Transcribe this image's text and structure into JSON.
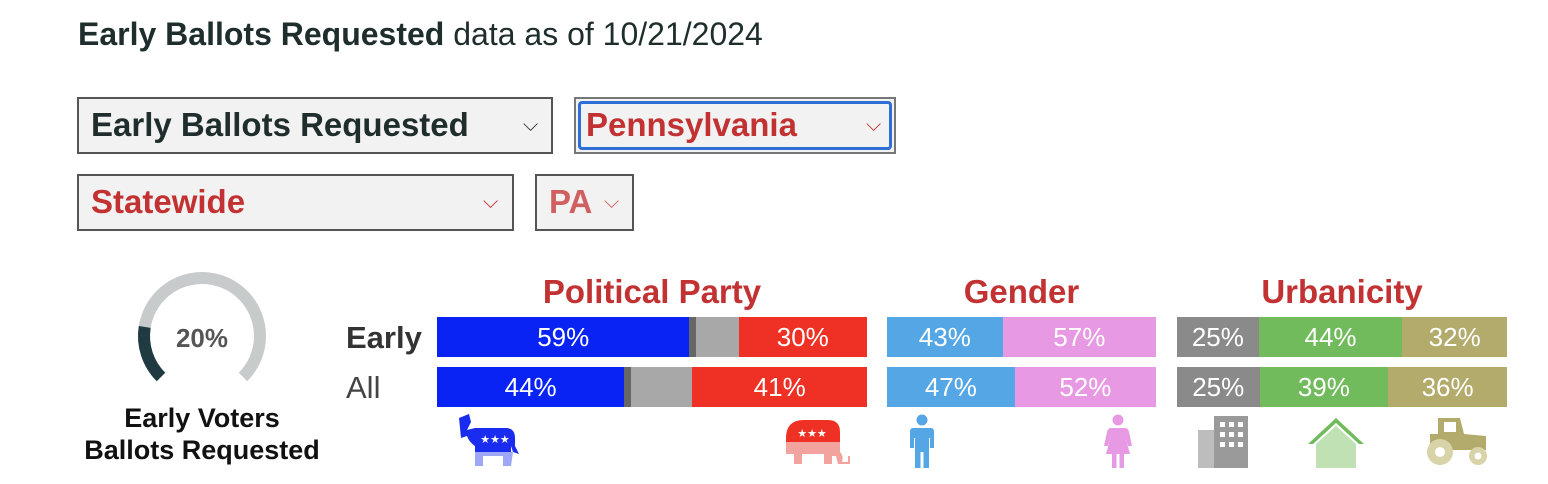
{
  "header": {
    "title_bold": "Early Ballots Requested",
    "title_rest": " data as of 10/21/2024"
  },
  "selects": {
    "measure": "Early Ballots Requested",
    "state": "Pennsylvania",
    "region": "Statewide",
    "state_code": "PA",
    "chevron": "⌵"
  },
  "gauge": {
    "value": 20,
    "label": "20%",
    "caption_line1": "Early Voters",
    "caption_line2": "Ballots Requested",
    "colors": {
      "track": "#c8cbcb",
      "fill": "#1f3a40"
    }
  },
  "rows": {
    "early": "Early",
    "all": "All"
  },
  "chart_data": [
    {
      "type": "bar",
      "title": "Political Party",
      "categories": [
        "Early",
        "All"
      ],
      "stacked": true,
      "series": [
        {
          "key": "dem",
          "color": "#0a23f5",
          "values": [
            59,
            44
          ],
          "labels": [
            "59%",
            "44%"
          ]
        },
        {
          "key": "lib",
          "color": "#666666",
          "values": [
            1.5,
            1.5
          ],
          "labels": [
            "",
            ""
          ]
        },
        {
          "key": "ind",
          "color": "#a8a8a8",
          "values": [
            10,
            14.5
          ],
          "labels": [
            "",
            ""
          ]
        },
        {
          "key": "rep",
          "color": "#ee3124",
          "values": [
            30,
            41
          ],
          "labels": [
            "30%",
            "41%"
          ]
        }
      ],
      "icons": [
        "donkey-icon",
        "elephant-icon"
      ]
    },
    {
      "type": "bar",
      "title": "Gender",
      "categories": [
        "Early",
        "All"
      ],
      "stacked": true,
      "series": [
        {
          "key": "male",
          "color": "#54a6e4",
          "values": [
            43,
            47
          ],
          "labels": [
            "43%",
            "47%"
          ]
        },
        {
          "key": "female",
          "color": "#e79ae3",
          "values": [
            57,
            52
          ],
          "labels": [
            "57%",
            "52%"
          ]
        }
      ],
      "icons": [
        "man-icon",
        "woman-icon"
      ]
    },
    {
      "type": "bar",
      "title": "Urbanicity",
      "categories": [
        "Early",
        "All"
      ],
      "stacked": true,
      "series": [
        {
          "key": "urban",
          "color": "#8a8a8a",
          "values": [
            25,
            25
          ],
          "labels": [
            "25%",
            "25%"
          ]
        },
        {
          "key": "suburban",
          "color": "#72bb5c",
          "values": [
            44,
            39
          ],
          "labels": [
            "44%",
            "39%"
          ]
        },
        {
          "key": "rural",
          "color": "#b3ab6b",
          "values": [
            32,
            36
          ],
          "labels": [
            "32%",
            "36%"
          ]
        }
      ],
      "icons": [
        "city-icon",
        "home-icon",
        "tractor-icon"
      ]
    }
  ]
}
